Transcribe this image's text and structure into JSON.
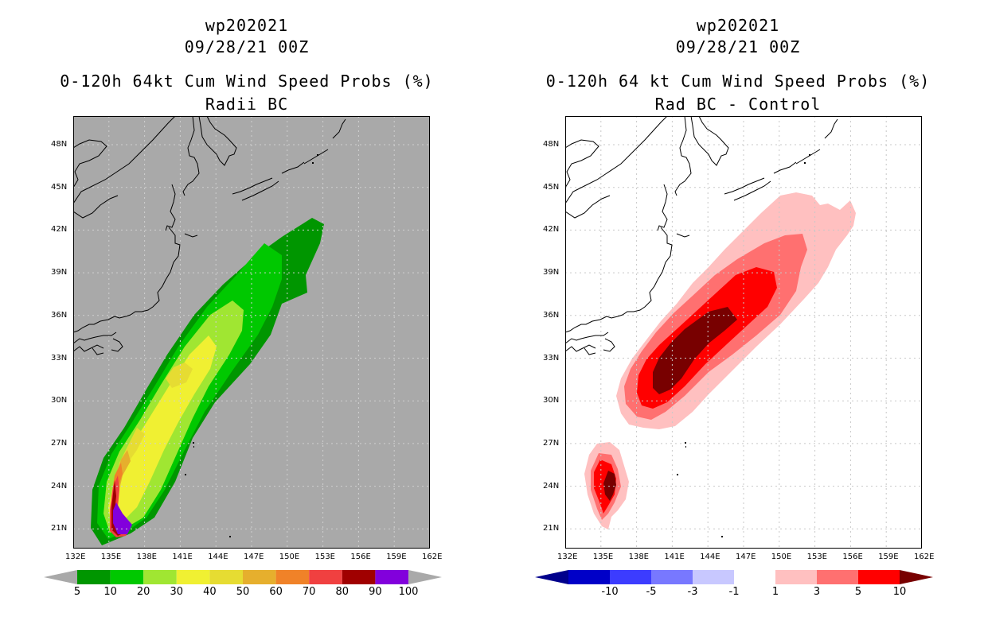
{
  "left": {
    "storm_id": "wp202021",
    "date": "09/28/21 00Z",
    "title": "0-120h 64kt Cum Wind Speed Probs (%)",
    "subtitle": "Radii BC",
    "background": "#a9a9a9",
    "colorbar": {
      "labels": [
        "5",
        "10",
        "20",
        "30",
        "40",
        "50",
        "60",
        "70",
        "80",
        "90",
        "100"
      ],
      "colors": [
        "#009600",
        "#00c800",
        "#a0e632",
        "#f0f032",
        "#e6dc32",
        "#e6af2d",
        "#f08228",
        "#f04040",
        "#a00000",
        "#8200dc"
      ],
      "end_arrow_color": "#a9a9a9"
    }
  },
  "right": {
    "storm_id": "wp202021",
    "date": "09/28/21 00Z",
    "title": "0-120h 64 kt Cum Wind Speed Probs (%)",
    "subtitle": "Rad BC - Control",
    "background": "#ffffff",
    "colorbar": {
      "labels": [
        "-10",
        "-5",
        "-3",
        "-1",
        "1",
        "3",
        "5",
        "10"
      ],
      "colors": [
        "#0000c8",
        "#3c3cff",
        "#7878ff",
        "#c8c8ff",
        "#ffffff",
        "#ffc0c0",
        "#ff7070",
        "#ff0000"
      ],
      "low_arrow_color": "#00008c",
      "high_arrow_color": "#780000"
    }
  },
  "map": {
    "lon_labels": [
      "132E",
      "135E",
      "138E",
      "141E",
      "144E",
      "147E",
      "150E",
      "153E",
      "156E",
      "159E",
      "162E"
    ],
    "lat_labels": [
      "48N",
      "45N",
      "42N",
      "39N",
      "36N",
      "33N",
      "30N",
      "27N",
      "24N",
      "21N"
    ]
  }
}
